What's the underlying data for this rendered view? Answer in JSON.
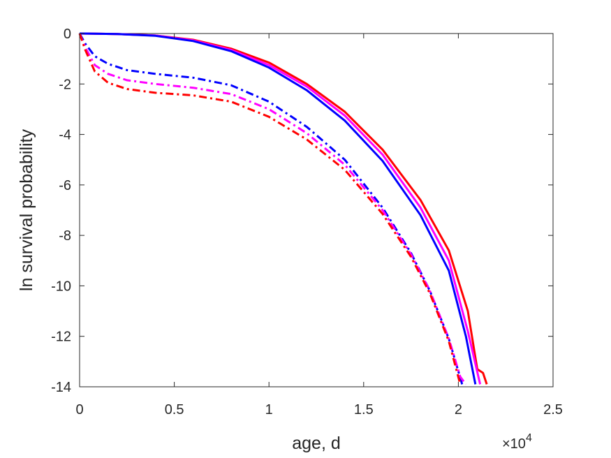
{
  "chart_data": {
    "type": "line",
    "xlabel": "age, d",
    "ylabel": "ln survival probability",
    "x_exponent_label": "×10",
    "x_exponent_power": "4",
    "xlim": [
      0,
      25000
    ],
    "ylim": [
      -14,
      0
    ],
    "xticks": [
      0,
      5000,
      10000,
      15000,
      20000,
      25000
    ],
    "xtick_labels": [
      "0",
      "0.5",
      "1",
      "1.5",
      "2",
      "2.5"
    ],
    "yticks": [
      0,
      -2,
      -4,
      -6,
      -8,
      -10,
      -12,
      -14
    ],
    "ytick_labels": [
      "0",
      "-2",
      "-4",
      "-6",
      "-8",
      "-10",
      "-12",
      "-14"
    ],
    "grid": false,
    "legend": "none",
    "series": [
      {
        "color": "#ff0000",
        "style": "solid",
        "points": [
          [
            0,
            0
          ],
          [
            2000,
            -0.02
          ],
          [
            4000,
            -0.08
          ],
          [
            6000,
            -0.25
          ],
          [
            8000,
            -0.6
          ],
          [
            10000,
            -1.15
          ],
          [
            12000,
            -2.0
          ],
          [
            14000,
            -3.1
          ],
          [
            16000,
            -4.6
          ],
          [
            18000,
            -6.6
          ],
          [
            19500,
            -8.6
          ],
          [
            20500,
            -11.0
          ],
          [
            21000,
            -13.3
          ],
          [
            21300,
            -13.45
          ],
          [
            21500,
            -13.9
          ]
        ]
      },
      {
        "color": "#ff00ff",
        "style": "solid",
        "points": [
          [
            0,
            0
          ],
          [
            2000,
            -0.02
          ],
          [
            4000,
            -0.08
          ],
          [
            6000,
            -0.27
          ],
          [
            8000,
            -0.65
          ],
          [
            10000,
            -1.25
          ],
          [
            12000,
            -2.1
          ],
          [
            14000,
            -3.25
          ],
          [
            16000,
            -4.8
          ],
          [
            18000,
            -6.9
          ],
          [
            19500,
            -9.0
          ],
          [
            20500,
            -11.8
          ],
          [
            21150,
            -13.9
          ]
        ]
      },
      {
        "color": "#0000ff",
        "style": "solid",
        "points": [
          [
            0,
            0
          ],
          [
            2000,
            -0.02
          ],
          [
            4000,
            -0.09
          ],
          [
            6000,
            -0.3
          ],
          [
            8000,
            -0.7
          ],
          [
            10000,
            -1.35
          ],
          [
            12000,
            -2.25
          ],
          [
            14000,
            -3.45
          ],
          [
            16000,
            -5.05
          ],
          [
            18000,
            -7.2
          ],
          [
            19500,
            -9.4
          ],
          [
            20400,
            -12.0
          ],
          [
            20900,
            -13.9
          ]
        ]
      },
      {
        "color": "#0000ff",
        "style": "dashdot",
        "points": [
          [
            0,
            0
          ],
          [
            300,
            -0.4
          ],
          [
            800,
            -0.9
          ],
          [
            1500,
            -1.2
          ],
          [
            2500,
            -1.45
          ],
          [
            4000,
            -1.6
          ],
          [
            6000,
            -1.75
          ],
          [
            8000,
            -2.05
          ],
          [
            10000,
            -2.7
          ],
          [
            12000,
            -3.7
          ],
          [
            14000,
            -5.0
          ],
          [
            16000,
            -6.9
          ],
          [
            17500,
            -8.7
          ],
          [
            18500,
            -10.2
          ],
          [
            19500,
            -12.1
          ],
          [
            20200,
            -13.9
          ]
        ]
      },
      {
        "color": "#ff00ff",
        "style": "dashdot",
        "points": [
          [
            0,
            0
          ],
          [
            300,
            -0.55
          ],
          [
            800,
            -1.25
          ],
          [
            1500,
            -1.6
          ],
          [
            2500,
            -1.85
          ],
          [
            4000,
            -2.0
          ],
          [
            6000,
            -2.15
          ],
          [
            8000,
            -2.4
          ],
          [
            10000,
            -3.0
          ],
          [
            12000,
            -3.95
          ],
          [
            14000,
            -5.2
          ],
          [
            16000,
            -7.0
          ],
          [
            17500,
            -8.75
          ],
          [
            18500,
            -10.2
          ],
          [
            19500,
            -12.1
          ],
          [
            20100,
            -13.6
          ],
          [
            20400,
            -13.9
          ]
        ]
      },
      {
        "color": "#ff0000",
        "style": "dashdot",
        "points": [
          [
            0,
            0
          ],
          [
            300,
            -0.65
          ],
          [
            800,
            -1.5
          ],
          [
            1500,
            -1.95
          ],
          [
            2500,
            -2.2
          ],
          [
            4000,
            -2.35
          ],
          [
            6000,
            -2.45
          ],
          [
            8000,
            -2.7
          ],
          [
            10000,
            -3.3
          ],
          [
            12000,
            -4.2
          ],
          [
            14000,
            -5.4
          ],
          [
            16000,
            -7.15
          ],
          [
            17500,
            -8.85
          ],
          [
            18500,
            -10.3
          ],
          [
            19500,
            -12.2
          ],
          [
            20100,
            -13.9
          ]
        ]
      }
    ]
  }
}
